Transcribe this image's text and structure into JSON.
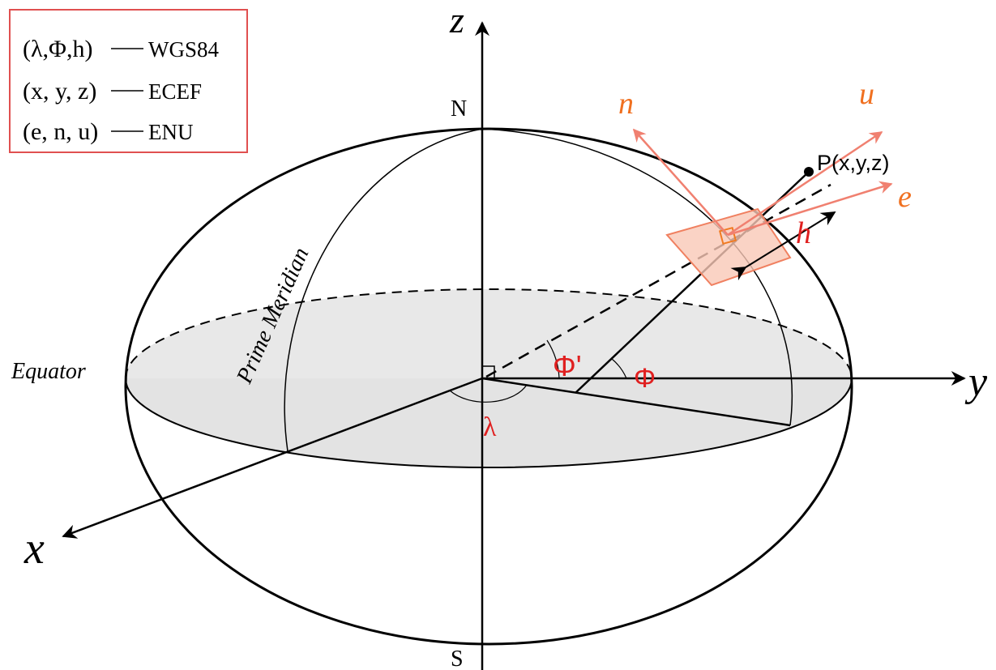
{
  "legend": [
    {
      "coords": "(λ,Φ,h)",
      "system": "WGS84"
    },
    {
      "coords": "(x, y, z)",
      "system": "ECEF"
    },
    {
      "coords": "(e, n, u)",
      "system": "ENU"
    }
  ],
  "axes": {
    "z": "z",
    "y": "y",
    "x": "x"
  },
  "poles": {
    "north": "N",
    "south": "S"
  },
  "labels": {
    "equator": "Equator",
    "prime_meridian": "Prime Meridian",
    "point": "P(x,y,z)"
  },
  "angles": {
    "geocentric_latitude": "Φ'",
    "geodetic_latitude": "Φ",
    "longitude": "λ"
  },
  "enu": {
    "n": "n",
    "u": "u",
    "e": "e",
    "h": "h"
  }
}
